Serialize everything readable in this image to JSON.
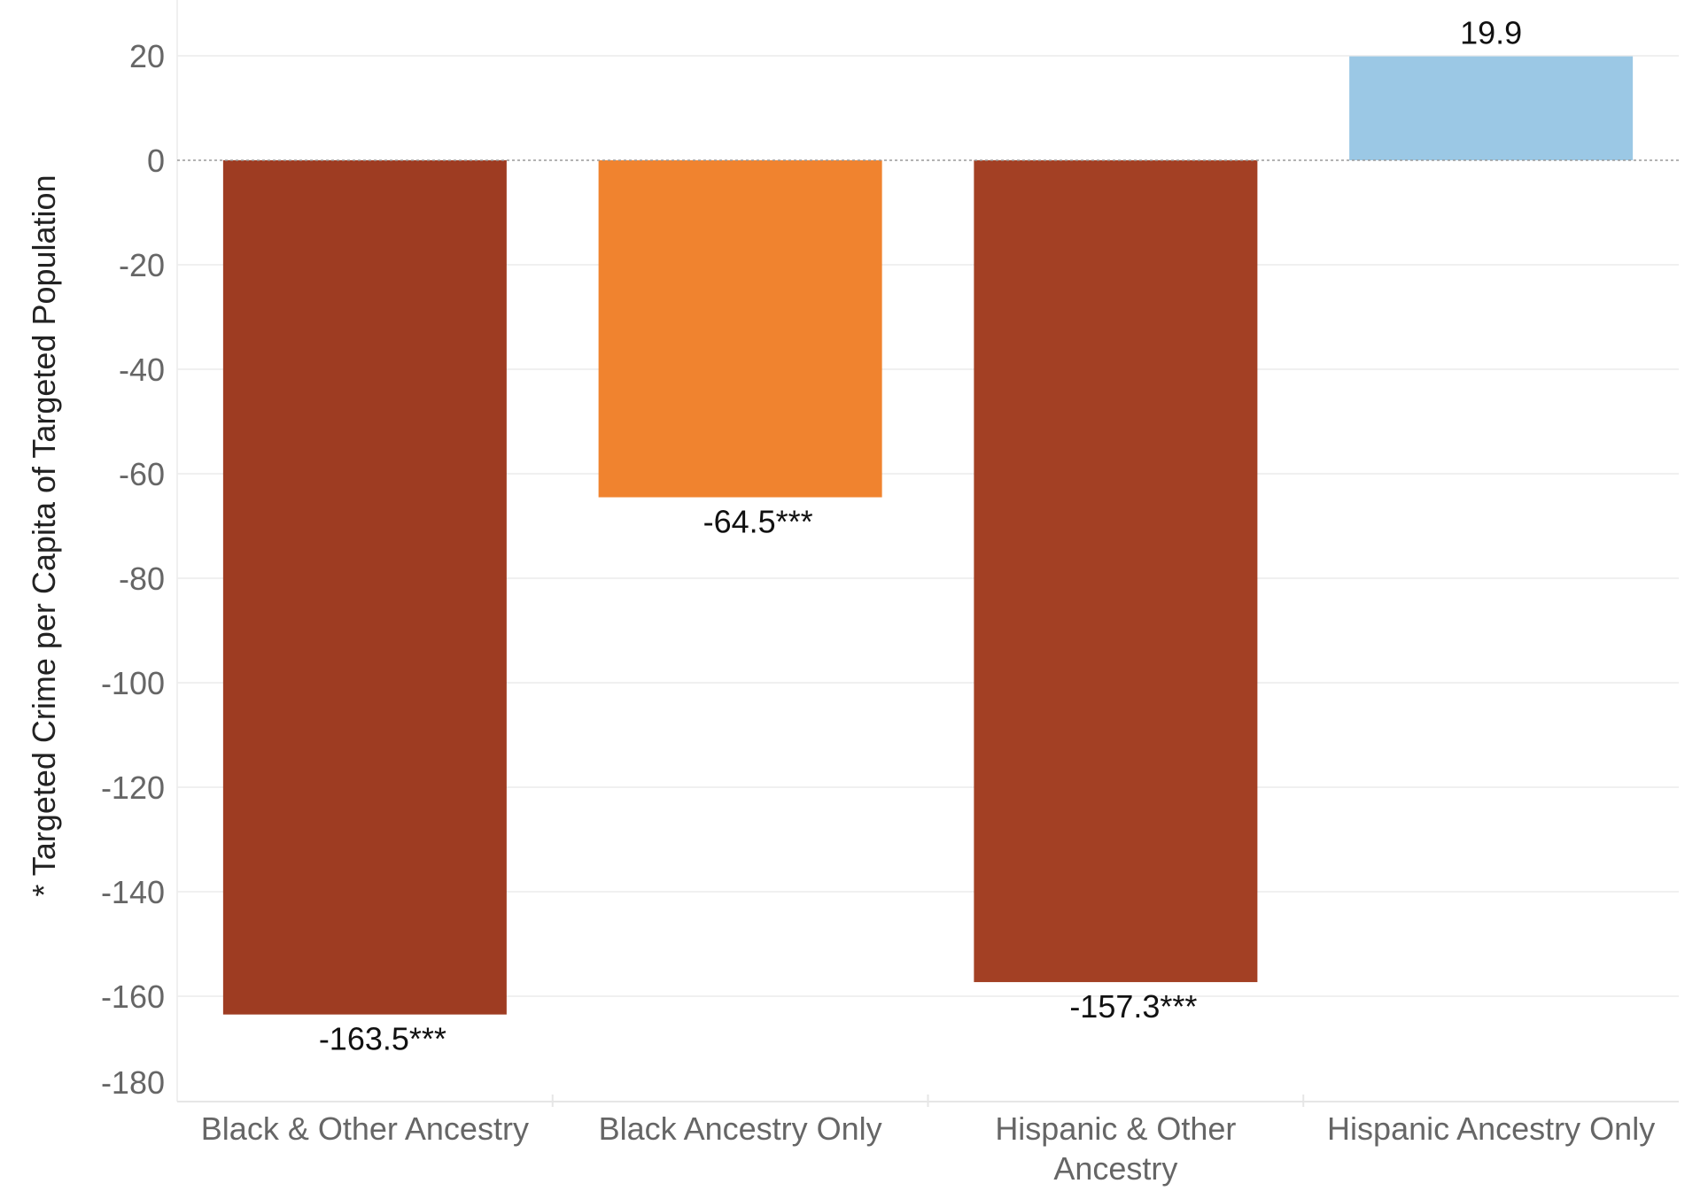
{
  "chart_data": {
    "type": "bar",
    "title": "",
    "xlabel": "",
    "ylabel": "* Targeted Crime per Capita of Targeted Population",
    "ylim": [
      -180,
      20
    ],
    "yticks": [
      20,
      0,
      -20,
      -40,
      -60,
      -80,
      -100,
      -120,
      -140,
      -160,
      -180
    ],
    "grid": true,
    "legend": "none",
    "categories": [
      [
        "Black & Other Ancestry"
      ],
      [
        "Black Ancestry Only"
      ],
      [
        "Hispanic & Other",
        "Ancestry"
      ],
      [
        "Hispanic Ancestry Only"
      ]
    ],
    "values": [
      -163.5,
      -64.5,
      -157.3,
      19.9
    ],
    "value_labels": [
      "-163.5***",
      "-64.5***",
      "-157.3***",
      "19.9"
    ],
    "colors": [
      "#9e3c22",
      "#f0832f",
      "#a34024",
      "#9bc8e5"
    ]
  }
}
